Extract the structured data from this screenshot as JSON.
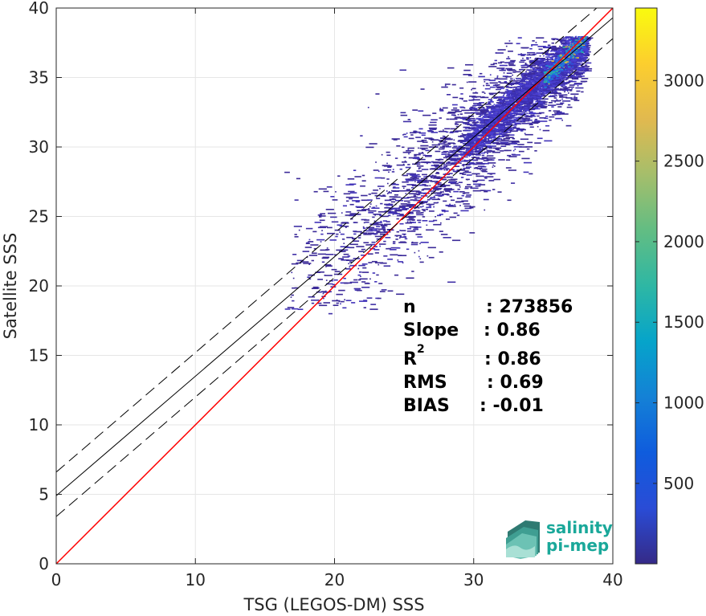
{
  "chart_data": {
    "type": "heatmap",
    "subtype": "2d-density-scatter",
    "xlabel": "TSG (LEGOS-DM) SSS",
    "ylabel": "Satellite SSS",
    "xlim": [
      0,
      40
    ],
    "ylim": [
      0,
      40
    ],
    "xticks": [
      "0",
      "10",
      "20",
      "30",
      "40"
    ],
    "yticks": [
      "0",
      "5",
      "10",
      "15",
      "20",
      "25",
      "30",
      "35",
      "40"
    ],
    "grid": true,
    "colormap": "parula",
    "colorbar": {
      "range": [
        1,
        3450
      ],
      "ticks": [
        "500",
        "1000",
        "1500",
        "2000",
        "2500",
        "3000"
      ],
      "tick_values": [
        500,
        1000,
        1500,
        2000,
        2500,
        3000
      ]
    },
    "lines": [
      {
        "name": "identity",
        "slope": 1.0,
        "intercept": 0.0,
        "color": "#ff0000",
        "style": "solid"
      },
      {
        "name": "regression",
        "slope": 0.86,
        "intercept": 4.9,
        "color": "#000000",
        "style": "solid"
      },
      {
        "name": "regression-upper",
        "slope": 0.86,
        "intercept": 6.6,
        "color": "#000000",
        "style": "dashed"
      },
      {
        "name": "regression-lower",
        "slope": 0.86,
        "intercept": 3.4,
        "color": "#000000",
        "style": "dashed"
      }
    ],
    "density_core": {
      "x": [
        29,
        38
      ],
      "y": [
        30,
        38
      ],
      "peak": [
        37.3,
        37.2
      ]
    },
    "scatter_extent": {
      "x": [
        15,
        38
      ],
      "y": [
        18,
        38
      ]
    }
  },
  "stats": [
    {
      "label": "n",
      "sup": "",
      "value": ": 273856"
    },
    {
      "label": "Slope",
      "sup": "",
      "value": ": 0.86"
    },
    {
      "label": "R",
      "sup": "2",
      "value": ": 0.86"
    },
    {
      "label": "RMS",
      "sup": "",
      "value": ": 0.69"
    },
    {
      "label": "BIAS",
      "sup": "",
      "value": ": -0.01"
    }
  ],
  "logo": {
    "line1": "salinity",
    "line2": "pi-mep",
    "color": "#1aa89a"
  }
}
